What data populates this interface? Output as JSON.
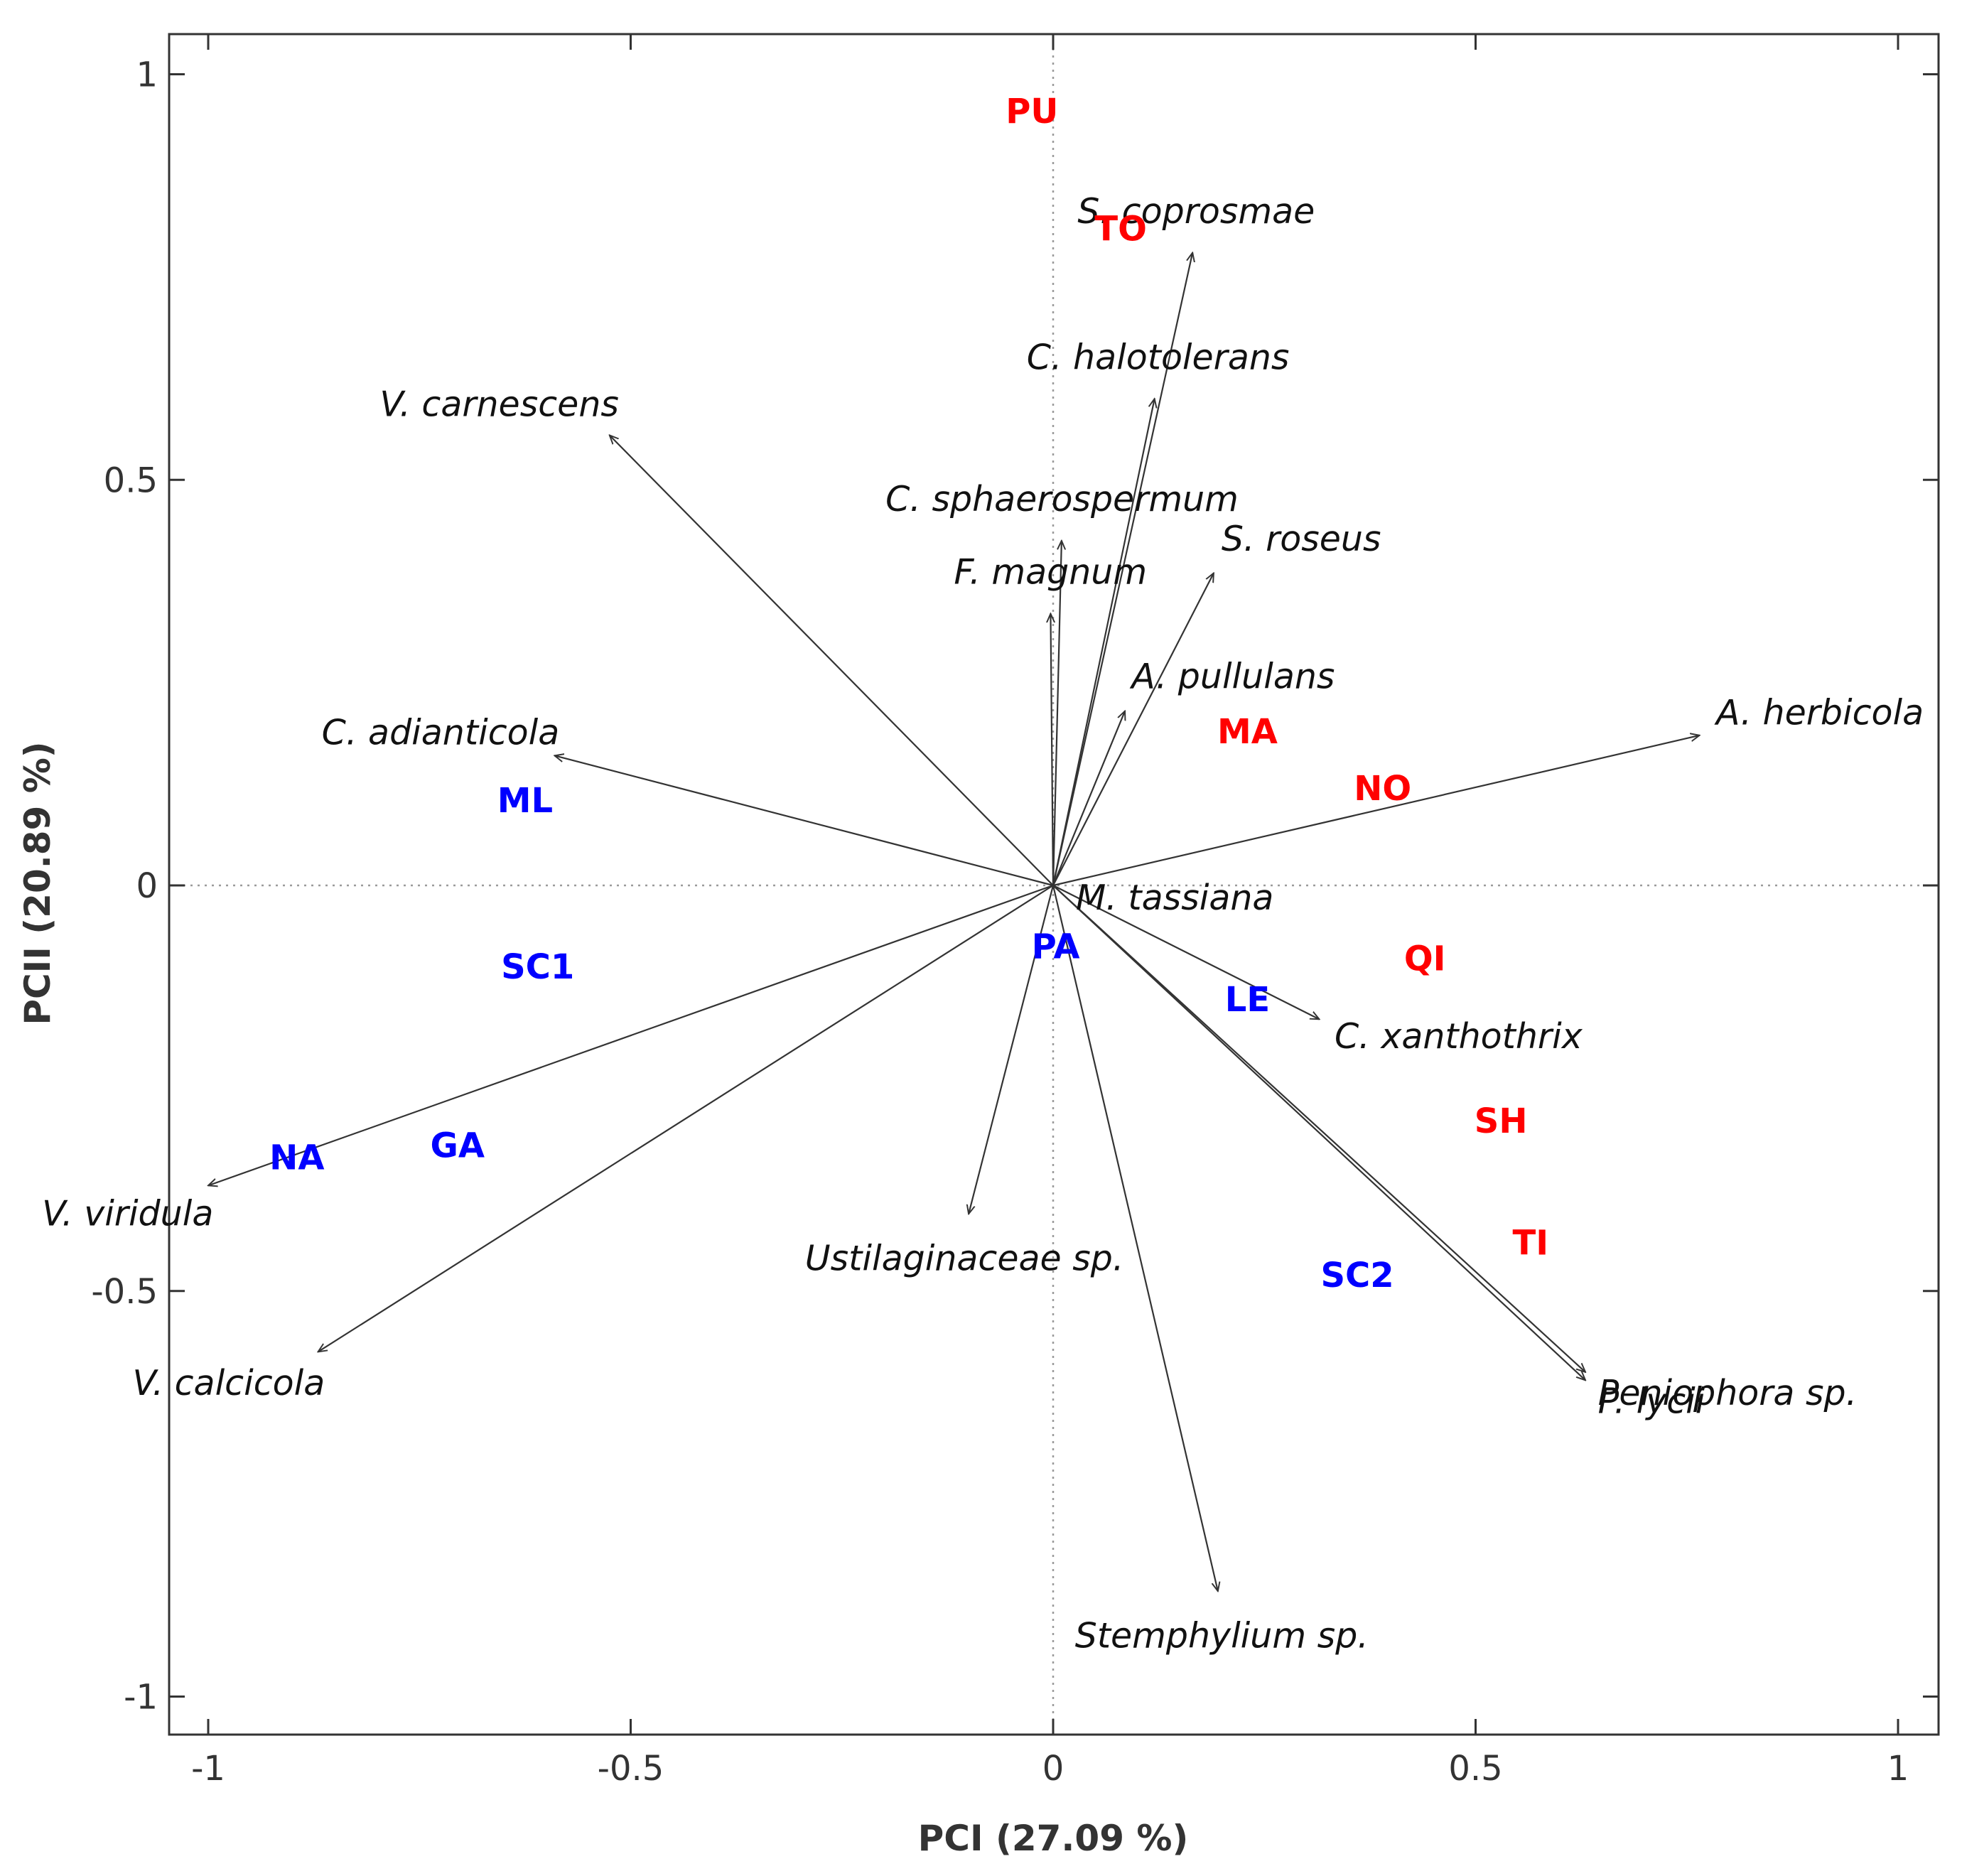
{
  "chart_data": {
    "type": "scatter",
    "subtype": "pca-biplot",
    "xlabel": "PCI (27.09 %)",
    "ylabel": "PCII (20.89 %)",
    "xlim": [
      -1.05,
      1.05
    ],
    "ylim": [
      -1.05,
      1.05
    ],
    "xticks": [
      -1,
      -0.5,
      0,
      0.5,
      1
    ],
    "xtick_labels": [
      "-1",
      "-0.5",
      "0",
      "0.5",
      "1"
    ],
    "yticks": [
      1,
      0.5,
      0,
      -0.5,
      -1
    ],
    "ytick_labels": [
      "1",
      "0.5",
      "0",
      "-0.5",
      "-1"
    ],
    "grid": false,
    "zero_lines": true,
    "colors": {
      "group_red": "#ff0000",
      "group_blue": "#0000ff",
      "arrow": "#333333"
    },
    "loadings": [
      {
        "name": "S. coprosmae",
        "x": 0.165,
        "y": 0.78
      },
      {
        "name": "C. halotolerans",
        "x": 0.12,
        "y": 0.6
      },
      {
        "name": "V. carnescens",
        "x": -0.525,
        "y": 0.555
      },
      {
        "name": "C. sphaerospermum",
        "x": 0.01,
        "y": 0.425
      },
      {
        "name": "S. roseus",
        "x": 0.19,
        "y": 0.385
      },
      {
        "name": "F. magnum",
        "x": -0.003,
        "y": 0.335
      },
      {
        "name": "A. pullulans",
        "x": 0.085,
        "y": 0.215
      },
      {
        "name": "A. herbicola",
        "x": 0.765,
        "y": 0.185
      },
      {
        "name": "C. adianticola",
        "x": -0.59,
        "y": 0.16
      },
      {
        "name": "M. tassiana",
        "x": 0.0,
        "y": 0.0
      },
      {
        "name": "C. xanthothrix",
        "x": 0.315,
        "y": -0.165
      },
      {
        "name": "V. viridula",
        "x": -1.0,
        "y": -0.37
      },
      {
        "name": "Ustilaginaceae sp.",
        "x": -0.1,
        "y": -0.405
      },
      {
        "name": "V. calcicola",
        "x": -0.87,
        "y": -0.575
      },
      {
        "name": "Peniophora sp.",
        "x": 0.63,
        "y": -0.6
      },
      {
        "name": "P. lycii",
        "x": 0.63,
        "y": -0.61
      },
      {
        "name": "Stemphylium sp.",
        "x": 0.195,
        "y": -0.87
      }
    ],
    "sites": [
      {
        "name": "PU",
        "x": -0.025,
        "y": 0.955,
        "group": "red"
      },
      {
        "name": "TO",
        "x": 0.08,
        "y": 0.81,
        "group": "red"
      },
      {
        "name": "MA",
        "x": 0.23,
        "y": 0.19,
        "group": "red"
      },
      {
        "name": "NO",
        "x": 0.39,
        "y": 0.12,
        "group": "red"
      },
      {
        "name": "QI",
        "x": 0.44,
        "y": -0.09,
        "group": "red"
      },
      {
        "name": "SH",
        "x": 0.53,
        "y": -0.29,
        "group": "red"
      },
      {
        "name": "TI",
        "x": 0.565,
        "y": -0.44,
        "group": "red"
      },
      {
        "name": "ML",
        "x": -0.625,
        "y": 0.105,
        "group": "blue"
      },
      {
        "name": "SC1",
        "x": -0.61,
        "y": -0.1,
        "group": "blue"
      },
      {
        "name": "PA",
        "x": 0.003,
        "y": -0.075,
        "group": "blue"
      },
      {
        "name": "LE",
        "x": 0.23,
        "y": -0.14,
        "group": "blue"
      },
      {
        "name": "NA",
        "x": -0.895,
        "y": -0.335,
        "group": "blue"
      },
      {
        "name": "GA",
        "x": -0.705,
        "y": -0.32,
        "group": "blue"
      },
      {
        "name": "SC2",
        "x": 0.36,
        "y": -0.48,
        "group": "blue"
      }
    ]
  }
}
